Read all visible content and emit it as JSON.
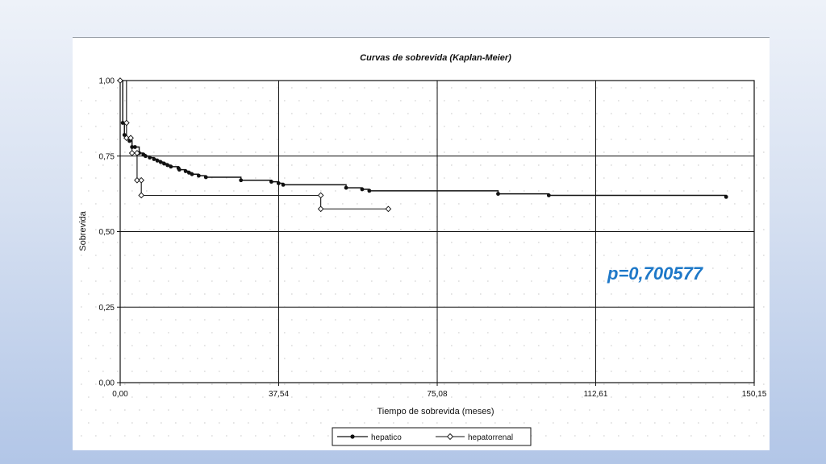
{
  "chart_data": {
    "type": "line",
    "title": "Curvas de sobrevida (Kaplan-Meier)",
    "xlabel": "Tiempo de sobrevida (meses)",
    "ylabel": "Sobrevida",
    "xlim": [
      0,
      150.15
    ],
    "ylim": [
      0,
      1
    ],
    "xticks": [
      0,
      37.54,
      75.08,
      112.61,
      150.15
    ],
    "xtick_labels": [
      "0,00",
      "37,54",
      "75,08",
      "112,61",
      "150,15"
    ],
    "yticks": [
      0,
      0.25,
      0.5,
      0.75,
      1
    ],
    "ytick_labels": [
      "0,00",
      "0,25",
      "0,50",
      "0,75",
      "1,00"
    ],
    "grid": true,
    "legend_position": "bottom",
    "annotation": "p=0,700577",
    "series": [
      {
        "name": "hepatico",
        "marker": "filled-circle",
        "color": "#111111",
        "points": [
          [
            0,
            1.0
          ],
          [
            0.6,
            0.86
          ],
          [
            1.0,
            0.82
          ],
          [
            1.5,
            0.81
          ],
          [
            2.2,
            0.8
          ],
          [
            2.8,
            0.78
          ],
          [
            3.5,
            0.78
          ],
          [
            4.5,
            0.76
          ],
          [
            5.5,
            0.755
          ],
          [
            6.0,
            0.75
          ],
          [
            7.0,
            0.745
          ],
          [
            8.0,
            0.74
          ],
          [
            8.8,
            0.735
          ],
          [
            9.6,
            0.73
          ],
          [
            10.4,
            0.725
          ],
          [
            11.2,
            0.72
          ],
          [
            12.0,
            0.715
          ],
          [
            13.8,
            0.71
          ],
          [
            14.0,
            0.705
          ],
          [
            15.5,
            0.7
          ],
          [
            16.3,
            0.695
          ],
          [
            17.0,
            0.69
          ],
          [
            18.6,
            0.685
          ],
          [
            20.3,
            0.68
          ],
          [
            28.6,
            0.67
          ],
          [
            35.8,
            0.665
          ],
          [
            37.5,
            0.66
          ],
          [
            38.6,
            0.655
          ],
          [
            53.5,
            0.645
          ],
          [
            57.3,
            0.64
          ],
          [
            59.0,
            0.635
          ],
          [
            89.5,
            0.625
          ],
          [
            101.5,
            0.62
          ],
          [
            143.5,
            0.615
          ]
        ]
      },
      {
        "name": "hepatorrenal",
        "marker": "open-diamond",
        "color": "#111111",
        "points": [
          [
            0,
            1.0
          ],
          [
            1.5,
            0.86
          ],
          [
            1.5,
            0.81
          ],
          [
            2.5,
            0.81
          ],
          [
            2.8,
            0.76
          ],
          [
            4.0,
            0.76
          ],
          [
            4.0,
            0.67
          ],
          [
            5.0,
            0.67
          ],
          [
            5.0,
            0.62
          ],
          [
            47.5,
            0.62
          ],
          [
            47.5,
            0.575
          ],
          [
            63.5,
            0.575
          ]
        ]
      }
    ]
  }
}
